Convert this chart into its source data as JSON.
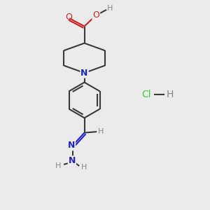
{
  "bg_color": "#ebebeb",
  "bond_color": "#3a3a3a",
  "N_color": "#2222cc",
  "O_color": "#cc2222",
  "Cl_color": "#44cc44",
  "H_color": "#888888",
  "bond_width": 1.5,
  "fig_size": [
    3.0,
    3.0
  ],
  "dpi": 100,
  "xlim": [
    0,
    10
  ],
  "ylim": [
    0,
    10
  ]
}
